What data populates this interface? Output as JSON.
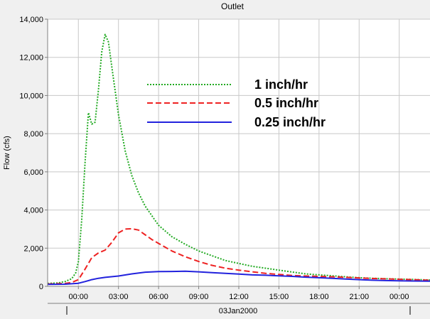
{
  "chart_data": {
    "type": "line",
    "title": "Outlet",
    "ylabel": "Flow (cfs)",
    "xlabel": "",
    "date_label": "03Jan2000",
    "x_unit": "hours",
    "xlim": [
      -2.3,
      26.3
    ],
    "ylim": [
      0,
      14000
    ],
    "y_ticks": [
      0,
      2000,
      4000,
      6000,
      8000,
      10000,
      12000,
      14000
    ],
    "y_tick_labels": [
      "0",
      "2,000",
      "4,000",
      "6,000",
      "8,000",
      "10,000",
      "12,000",
      "14,000"
    ],
    "x_ticks": [
      0,
      3,
      6,
      9,
      12,
      15,
      18,
      21,
      24
    ],
    "x_tick_labels": [
      "00:00",
      "03:00",
      "06:00",
      "09:00",
      "12:00",
      "15:00",
      "18:00",
      "21:00",
      "00:00"
    ],
    "grid": true,
    "legend_position": "top-center",
    "series": [
      {
        "name": "1 inch/hr",
        "color": "#22aa22",
        "style": "dotted",
        "x": [
          -2.3,
          -1.5,
          -1,
          -0.5,
          -0.2,
          0,
          0.25,
          0.5,
          0.75,
          1,
          1.25,
          1.5,
          1.75,
          2,
          2.25,
          2.5,
          3,
          3.5,
          4,
          4.5,
          5,
          6,
          7,
          8,
          9,
          10,
          11,
          12,
          13,
          14,
          15,
          16,
          17,
          18,
          19,
          20,
          21,
          22,
          23,
          24,
          25,
          26.3
        ],
        "y": [
          150,
          180,
          250,
          400,
          700,
          1300,
          3500,
          6500,
          9100,
          8500,
          8600,
          10300,
          12300,
          13200,
          12800,
          11500,
          9000,
          7100,
          5800,
          4900,
          4200,
          3200,
          2600,
          2200,
          1850,
          1600,
          1350,
          1200,
          1050,
          950,
          850,
          750,
          650,
          600,
          550,
          500,
          450,
          420,
          400,
          380,
          360,
          330
        ]
      },
      {
        "name": "0.5 inch/hr",
        "color": "#ee2222",
        "style": "dashed",
        "x": [
          -2.3,
          -1,
          -0.5,
          0,
          0.5,
          1,
          1.5,
          2,
          2.5,
          3,
          3.5,
          4,
          4.5,
          5,
          5.5,
          6,
          7,
          8,
          9,
          10,
          11,
          12,
          13,
          14,
          15,
          16,
          17,
          18,
          19,
          20,
          21,
          22,
          23,
          24,
          25,
          26.3
        ],
        "y": [
          120,
          150,
          200,
          350,
          900,
          1500,
          1750,
          1900,
          2300,
          2800,
          3000,
          3020,
          2950,
          2700,
          2450,
          2250,
          1850,
          1550,
          1300,
          1100,
          950,
          850,
          760,
          680,
          620,
          570,
          540,
          520,
          500,
          470,
          440,
          410,
          390,
          370,
          350,
          320
        ]
      },
      {
        "name": "0.25 inch/hr",
        "color": "#2222dd",
        "style": "solid",
        "x": [
          -2.3,
          -1,
          0,
          0.5,
          1,
          1.5,
          2,
          3,
          4,
          5,
          6,
          7,
          8,
          9,
          10,
          11,
          12,
          13,
          14,
          15,
          16,
          17,
          18,
          19,
          20,
          21,
          22,
          23,
          24,
          25,
          26.3
        ],
        "y": [
          100,
          110,
          160,
          250,
          350,
          420,
          470,
          540,
          650,
          740,
          770,
          780,
          790,
          760,
          720,
          680,
          640,
          600,
          580,
          550,
          520,
          480,
          450,
          420,
          380,
          350,
          320,
          300,
          290,
          280,
          270
        ]
      }
    ]
  }
}
